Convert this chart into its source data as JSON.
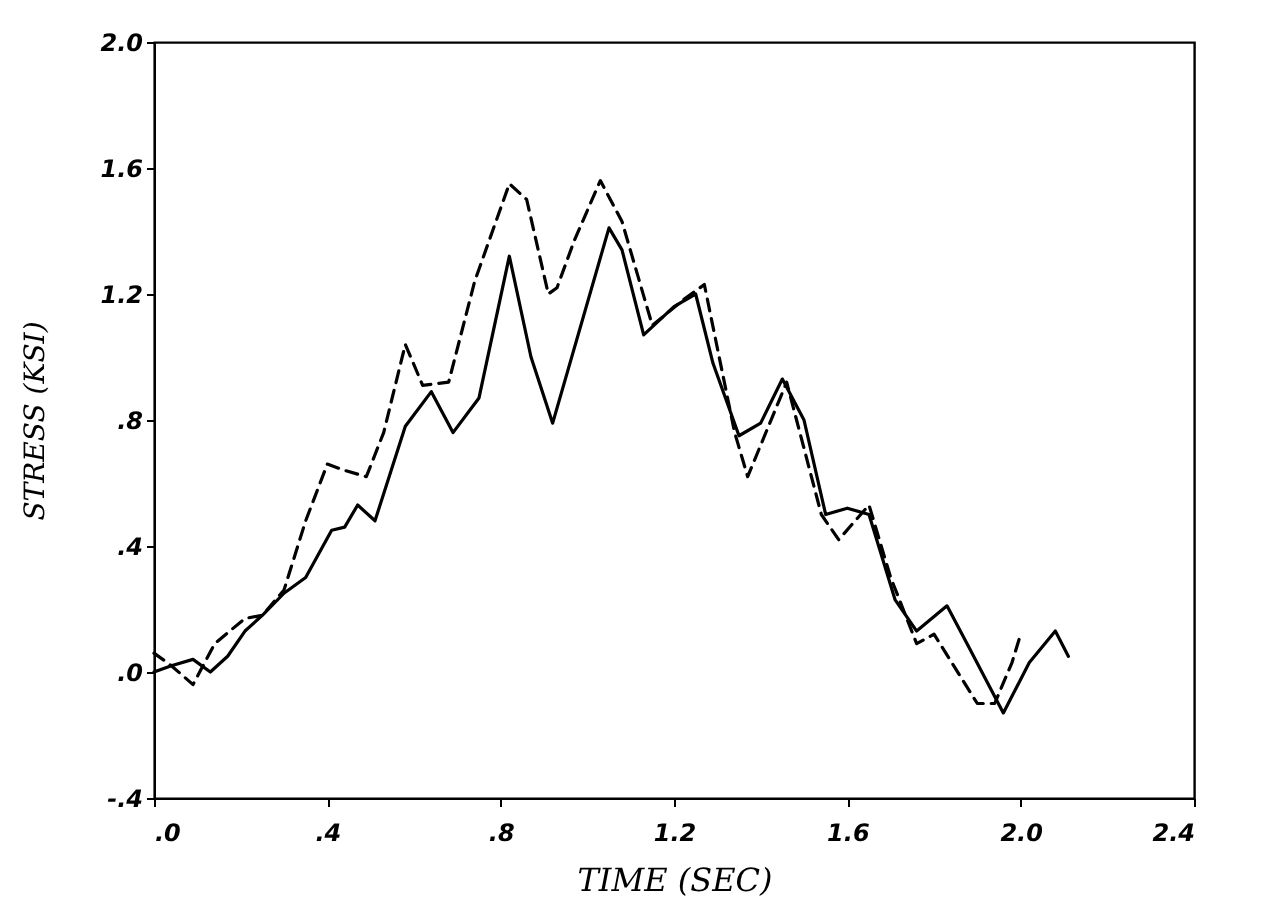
{
  "chart_data": {
    "type": "line",
    "xlabel": "TIME (SEC)",
    "ylabel": "STRESS (KSI)",
    "xlim": [
      0,
      2.4
    ],
    "ylim": [
      -0.4,
      2.0
    ],
    "xticks": [
      {
        "value": 0,
        "label": ".0"
      },
      {
        "value": 0.4,
        "label": ".4"
      },
      {
        "value": 0.8,
        "label": ".8"
      },
      1.2,
      1.6,
      {
        "value": 2.0,
        "label": "2.0"
      },
      2.4
    ],
    "yticks": [
      {
        "value": -0.4,
        "label": "-.4"
      },
      {
        "value": 0,
        "label": ".0"
      },
      {
        "value": 0.4,
        "label": ".4"
      },
      {
        "value": 0.8,
        "label": ".8"
      },
      1.2,
      1.6,
      {
        "value": 2.0,
        "label": "2.0"
      }
    ],
    "grid": false,
    "series": [
      {
        "color": "#000000",
        "line_style": "solid",
        "x": [
          0,
          0.04,
          0.09,
          0.13,
          0.17,
          0.21,
          0.25,
          0.3,
          0.35,
          0.41,
          0.44,
          0.47,
          0.51,
          0.58,
          0.64,
          0.69,
          0.75,
          0.82,
          0.87,
          0.92,
          1.05,
          1.08,
          1.13,
          1.2,
          1.25,
          1.29,
          1.35,
          1.4,
          1.45,
          1.5,
          1.55,
          1.6,
          1.65,
          1.71,
          1.76,
          1.83,
          1.88,
          1.96,
          2.02,
          2.08,
          2.11
        ],
        "values": [
          0,
          0.02,
          0.04,
          0,
          0.05,
          0.13,
          0.18,
          0.25,
          0.3,
          0.45,
          0.46,
          0.53,
          0.48,
          0.78,
          0.89,
          0.76,
          0.87,
          1.32,
          1.0,
          0.79,
          1.41,
          1.34,
          1.07,
          1.16,
          1.2,
          0.98,
          0.75,
          0.79,
          0.93,
          0.8,
          0.5,
          0.52,
          0.5,
          0.23,
          0.13,
          0.21,
          0.08,
          -0.13,
          0.03,
          0.13,
          0.05
        ]
      },
      {
        "color": "#000000",
        "line_style": "dashed",
        "x": [
          0,
          0.04,
          0.09,
          0.14,
          0.21,
          0.25,
          0.3,
          0.35,
          0.4,
          0.44,
          0.49,
          0.53,
          0.58,
          0.62,
          0.68,
          0.74,
          0.82,
          0.86,
          0.91,
          0.93,
          0.97,
          1.03,
          1.08,
          1.15,
          1.22,
          1.27,
          1.34,
          1.37,
          1.46,
          1.54,
          1.58,
          1.65,
          1.7,
          1.76,
          1.8,
          1.9,
          1.94,
          1.98,
          2.0
        ],
        "values": [
          0.06,
          0.02,
          -0.04,
          0.09,
          0.17,
          0.18,
          0.26,
          0.48,
          0.66,
          0.64,
          0.62,
          0.76,
          1.04,
          0.91,
          0.92,
          1.24,
          1.55,
          1.5,
          1.2,
          1.22,
          1.37,
          1.56,
          1.43,
          1.1,
          1.18,
          1.23,
          0.76,
          0.62,
          0.92,
          0.5,
          0.42,
          0.53,
          0.3,
          0.09,
          0.12,
          -0.1,
          -0.1,
          0.03,
          0.12
        ]
      }
    ]
  }
}
